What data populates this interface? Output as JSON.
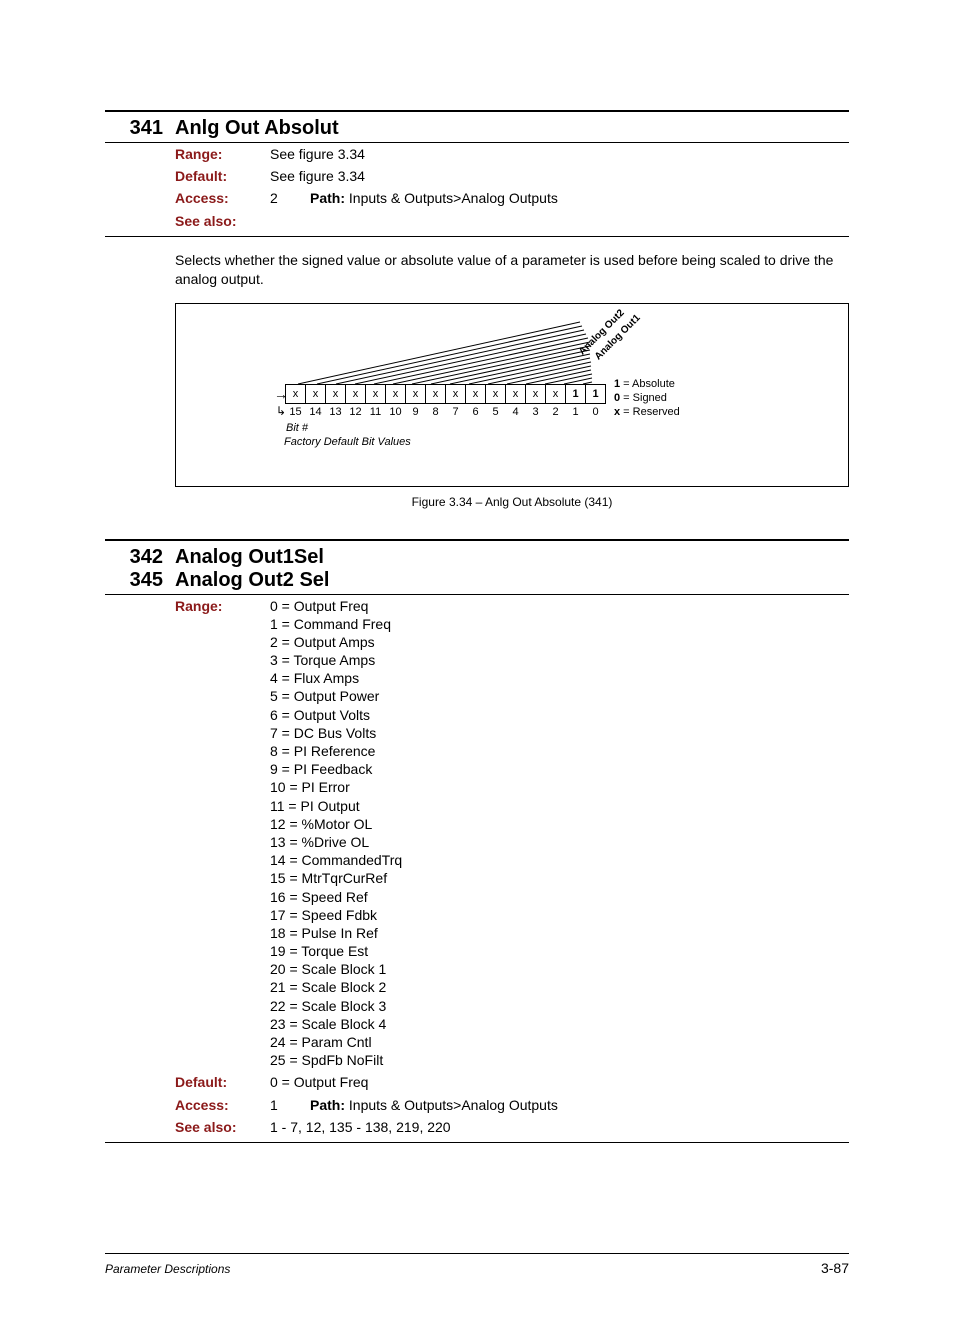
{
  "param341": {
    "numbers": [
      "341"
    ],
    "title": "Anlg Out Absolut",
    "range": "See figure 3.34",
    "default": "See figure 3.34",
    "access": "2",
    "path_label": "Path: ",
    "path_value": "Inputs & Outputs>Analog Outputs",
    "see_also": "",
    "description": "Selects whether the signed value or absolute value of a parameter is used before being scaled to drive the analog output.",
    "figure": {
      "bits_top": [
        "x",
        "x",
        "x",
        "x",
        "x",
        "x",
        "x",
        "x",
        "x",
        "x",
        "x",
        "x",
        "x",
        "x",
        "1",
        "1"
      ],
      "bits_bold_from_index": 14,
      "bit_numbers": [
        "15",
        "14",
        "13",
        "12",
        "11",
        "10",
        "9",
        "8",
        "7",
        "6",
        "5",
        "4",
        "3",
        "2",
        "1",
        "0"
      ],
      "bit_label": "Bit #",
      "factory_label": "Factory Default Bit Values",
      "diag_label_1": "Analog Out2",
      "diag_label_2": "Analog Out1",
      "legend": [
        {
          "k": "1",
          "v": "Absolute"
        },
        {
          "k": "0",
          "v": "Signed"
        },
        {
          "k": "x",
          "v": "Reserved"
        }
      ],
      "caption": "Figure 3.34 – Anlg Out Absolute (341)"
    }
  },
  "param342": {
    "numbers": [
      "342",
      "345"
    ],
    "title_lines": [
      "Analog Out1Sel",
      "Analog Out2 Sel"
    ],
    "range_items": [
      "0 = Output Freq",
      "1 = Command Freq",
      "2 = Output Amps",
      "3 = Torque Amps",
      "4 = Flux Amps",
      "5 = Output Power",
      "6 = Output Volts",
      "7 = DC Bus Volts",
      "8 = PI Reference",
      "9 = PI Feedback",
      "10 = PI Error",
      "11 = PI Output",
      "12 = %Motor OL",
      "13 = %Drive OL",
      "14 = CommandedTrq",
      "15 = MtrTqrCurRef",
      "16 = Speed Ref",
      "17 = Speed Fdbk",
      "18 = Pulse In Ref",
      "19 = Torque Est",
      "20 = Scale Block 1",
      "21 = Scale Block 2",
      "22 = Scale Block 3",
      "23 = Scale Block 4",
      "24 = Param Cntl",
      "25 = SpdFb NoFilt"
    ],
    "default": "0 = Output Freq",
    "access": "1",
    "path_label": "Path: ",
    "path_value": "Inputs & Outputs>Analog Outputs",
    "see_also": "1 - 7, 12, 135 - 138, 219, 220"
  },
  "labels": {
    "range": "Range:",
    "default": "Default:",
    "access": "Access:",
    "see_also": "See also:"
  },
  "footer": {
    "left": "Parameter Descriptions",
    "right": "3-87"
  }
}
